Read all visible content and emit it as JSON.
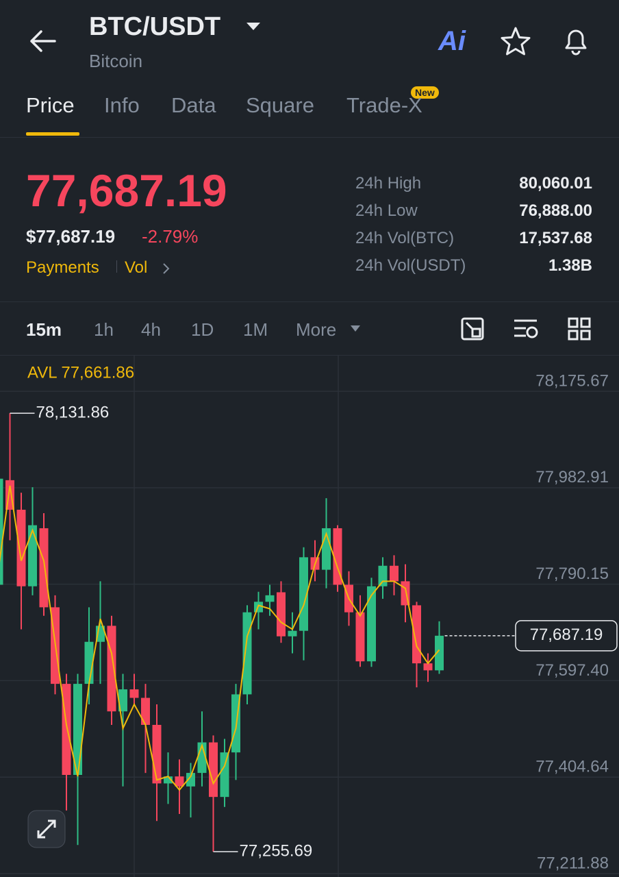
{
  "header": {
    "title": "BTC/USDT",
    "subtitle": "Bitcoin",
    "ai_label": "Ai"
  },
  "tabs": [
    "Price",
    "Info",
    "Data",
    "Square",
    "Trade-X"
  ],
  "badge": "New",
  "price": {
    "last": "77,687.19",
    "usd": "$77,687.19",
    "change": "-2.79%",
    "links": [
      "Payments",
      "Vol"
    ]
  },
  "stats": [
    {
      "label": "24h High",
      "value": "80,060.01"
    },
    {
      "label": "24h Low",
      "value": "76,888.00"
    },
    {
      "label": "24h Vol(BTC)",
      "value": "17,537.68"
    },
    {
      "label": "24h Vol(USDT)",
      "value": "1.38B"
    }
  ],
  "intervals": [
    "15m",
    "1h",
    "4h",
    "1D",
    "1M",
    "More"
  ],
  "chart_data": {
    "type": "candlestick",
    "annotation": "AVL 77,661.86",
    "ylim": [
      77205,
      78247
    ],
    "yticks": [
      {
        "value": 78175.67,
        "label": "78,175.67"
      },
      {
        "value": 77982.91,
        "label": "77,982.91"
      },
      {
        "value": 77790.15,
        "label": "77,790.15"
      },
      {
        "value": 77597.4,
        "label": "77,597.40"
      },
      {
        "value": 77404.64,
        "label": "77,404.64"
      },
      {
        "value": 77211.88,
        "label": "77,211.88"
      }
    ],
    "grid": true,
    "up_color": "#2ebd85",
    "down_color": "#f6465d",
    "ma_color": "#f0b90b",
    "high_marker": {
      "value": 78131.86,
      "label": "78,131.86"
    },
    "low_marker": {
      "value": 77255.69,
      "label": "77,255.69"
    },
    "last_price": {
      "value": 77687.19,
      "label": "77,687.19"
    },
    "candles": {
      "open": [
        77789,
        77998,
        77939,
        77786,
        77902,
        77744,
        77591,
        77409,
        77591,
        77675,
        77707,
        77536,
        77580,
        77563,
        77509,
        77392,
        77406,
        77386,
        77413,
        77474,
        77365,
        77454,
        77570,
        77734,
        77755,
        77774,
        77686,
        77697,
        77844,
        77819,
        77902,
        77789,
        77734,
        77636,
        77786,
        77827,
        77796,
        77748,
        77632,
        77618
      ],
      "high": [
        78014,
        78131.86,
        77973,
        77984,
        77932,
        77768,
        77611,
        77611,
        77744,
        77796,
        77727,
        77611,
        77611,
        77591,
        77550,
        77454,
        77440,
        77433,
        77536,
        77488,
        77481,
        77591,
        77748,
        77775,
        77789,
        77796,
        77734,
        77864,
        77878,
        77962,
        77908,
        77816,
        77768,
        77803,
        77844,
        77848,
        77830,
        77755,
        77652,
        77716
      ],
      "low": [
        77768,
        77878,
        77700,
        77768,
        77727,
        77570,
        77338,
        77269,
        77550,
        77591,
        77509,
        77386,
        77550,
        77413,
        77317,
        77351,
        77331,
        77324,
        77386,
        77255.69,
        77345,
        77399,
        77550,
        77700,
        77727,
        77673,
        77652,
        77638,
        77796,
        77782,
        77775,
        77707,
        77625,
        77625,
        77761,
        77768,
        77714,
        77584,
        77595,
        77611
      ],
      "close": [
        78001,
        77939,
        77786,
        77908,
        77744,
        77591,
        77409,
        77591,
        77675,
        77707,
        77536,
        77580,
        77563,
        77509,
        77392,
        77406,
        77386,
        77413,
        77474,
        77365,
        77454,
        77570,
        77734,
        77755,
        77768,
        77686,
        77697,
        77844,
        77819,
        77902,
        77789,
        77734,
        77636,
        77786,
        77827,
        77796,
        77748,
        77632,
        77618,
        77687.19
      ]
    },
    "ma_values": [
      77823,
      77987,
      77837,
      77898,
      77837,
      77673,
      77509,
      77406,
      77591,
      77721,
      77652,
      77502,
      77550,
      77509,
      77399,
      77406,
      77379,
      77406,
      77468,
      77392,
      77427,
      77502,
      77686,
      77748,
      77741,
      77714,
      77700,
      77748,
      77830,
      77891,
      77823,
      77761,
      77727,
      77768,
      77796,
      77796,
      77782,
      77666,
      77632,
      77659
    ]
  }
}
